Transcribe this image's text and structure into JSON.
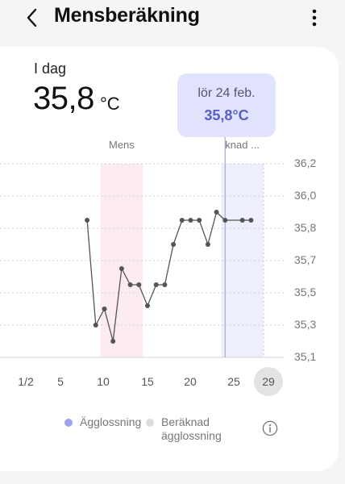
{
  "header": {
    "title": "Mensberäkning"
  },
  "today": {
    "label": "I dag",
    "value": "35,8",
    "unit": "°C"
  },
  "tooltip": {
    "date": "lör 24 feb.",
    "value": "35,8°C"
  },
  "legend": {
    "ovulation": "Ägglossning",
    "predicted_ovulation": "Beräknad ägglossning"
  },
  "colors": {
    "menstruation_band": "#fdecef",
    "predicted_band": "#eeeffd",
    "tooltip_bg": "#e1e2fb",
    "accent": "#5a5fc8",
    "ovulation_dot": "#9ea3ee",
    "predicted_dot": "#dcdcdc",
    "line": "#555555"
  },
  "icons": {
    "back": "chevron-left-icon",
    "more": "more-vertical-icon",
    "info": "info-icon"
  },
  "chart_data": {
    "type": "line",
    "title": "",
    "xlabel": "",
    "ylabel": "°C",
    "y_axis": "right",
    "y_tick_labels": [
      "36,2",
      "36,0",
      "35,8",
      "35,7",
      "35,5",
      "35,3",
      "35,1"
    ],
    "x_tick_labels": [
      "1/2",
      "5",
      "10",
      "15",
      "20",
      "25",
      "29"
    ],
    "selected_x_label": "29",
    "bands": [
      {
        "label": "Mens",
        "from": 10,
        "to": 14
      },
      {
        "label": "knad ...",
        "from": 24,
        "to": 28
      }
    ],
    "series": [
      {
        "points": [
          {
            "x": 8,
            "y": 35.85
          },
          {
            "x": 9,
            "y": 35.3
          },
          {
            "x": 10,
            "y": 35.4
          },
          {
            "x": 11,
            "y": 35.2
          },
          {
            "x": 12,
            "y": 35.65
          },
          {
            "x": 13,
            "y": 35.55
          },
          {
            "x": 14,
            "y": 35.55
          },
          {
            "x": 15,
            "y": 35.42
          },
          {
            "x": 16,
            "y": 35.55
          },
          {
            "x": 17,
            "y": 35.55
          },
          {
            "x": 18,
            "y": 35.75
          },
          {
            "x": 19,
            "y": 35.85
          },
          {
            "x": 20,
            "y": 35.85
          },
          {
            "x": 21,
            "y": 35.85
          },
          {
            "x": 22,
            "y": 35.75
          },
          {
            "x": 23,
            "y": 35.9
          },
          {
            "x": 24,
            "y": 35.85
          },
          {
            "x": 26,
            "y": 35.85
          },
          {
            "x": 27,
            "y": 35.85
          }
        ]
      }
    ],
    "selected_x": 24
  }
}
